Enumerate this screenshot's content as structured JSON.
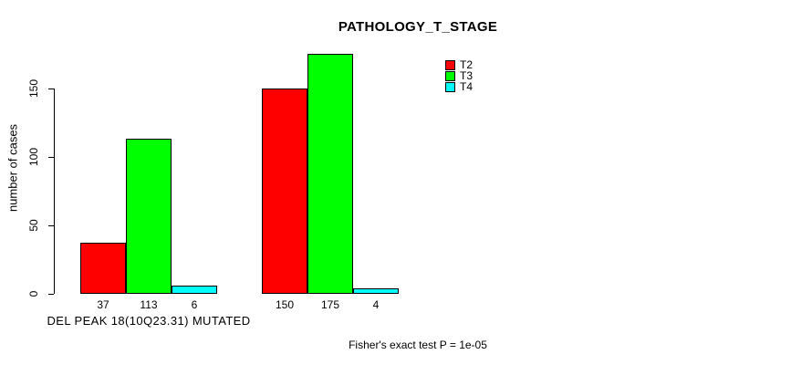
{
  "chart_data": {
    "type": "bar",
    "title": "PATHOLOGY_T_STAGE",
    "ylabel": "number of cases",
    "xlabel": "",
    "categories": [
      "DEL PEAK 18(10Q23.31) MUTATED",
      ""
    ],
    "series": [
      {
        "name": "T2",
        "color": "#ff0000",
        "values": [
          37,
          150
        ]
      },
      {
        "name": "T3",
        "color": "#00ff00",
        "values": [
          113,
          175
        ]
      },
      {
        "name": "T4",
        "color": "#00ffff",
        "values": [
          6,
          4
        ]
      }
    ],
    "bar_value_labels": [
      [
        37,
        113,
        6
      ],
      [
        150,
        175,
        4
      ]
    ],
    "yticks": [
      0,
      50,
      100,
      150
    ],
    "ylim": [
      0,
      175
    ],
    "grid": false,
    "legend_position": "top-right",
    "bar_border_color": "#000000",
    "annotation": "Fisher's exact test P = 1e-05"
  }
}
